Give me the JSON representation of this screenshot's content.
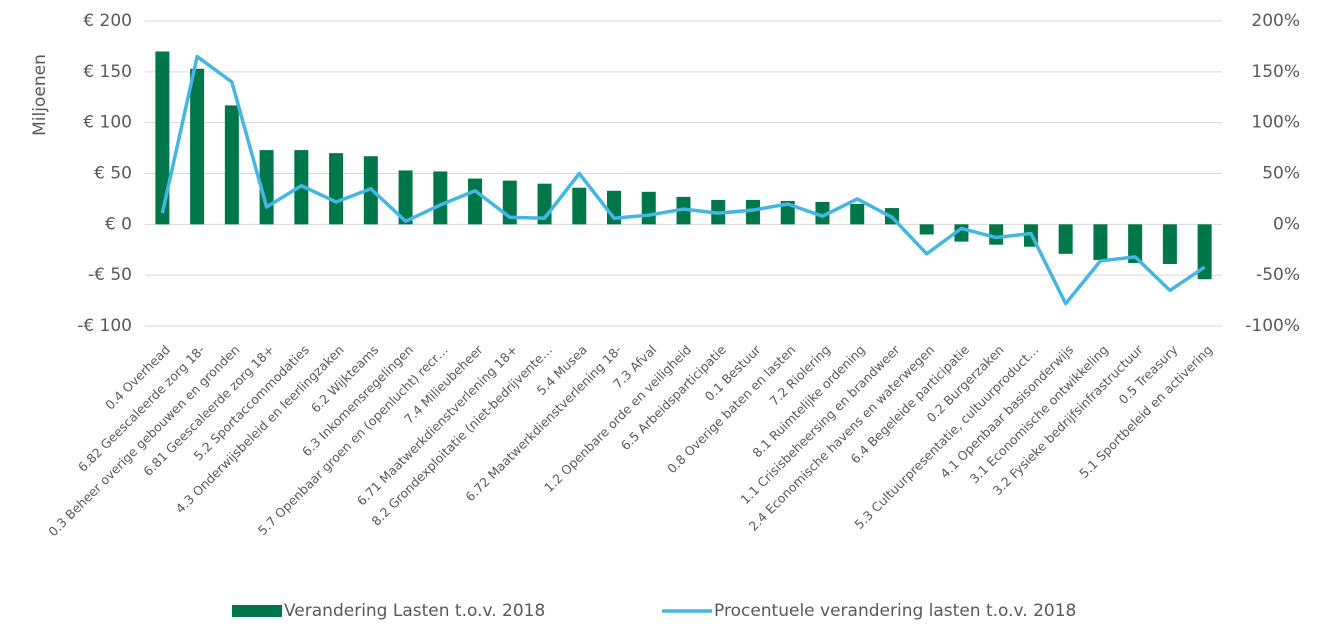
{
  "chart_data": {
    "type": "bar_line",
    "ylabel": "Miljoenen",
    "categories": [
      "0.4 Overhead",
      "6.82 Geescaleerde zorg 18-",
      "0.3 Beheer overige gebouwen en gronden",
      "6.81 Geescaleerde zorg 18+",
      "5.2 Sportaccommodaties",
      "4.3 Onderwijsbeleid en leerlingzaken",
      "6.2 Wijkteams",
      "6.3 Inkomensregelingen",
      "5.7 Openbaar groen en (openlucht) recr…",
      "7.4 Milieubeheer",
      "6.71 Maatwerkdienstverlening 18+",
      "8.2 Grondexploitatie (niet-bedrijvente…",
      "5.4 Musea",
      "6.72 Maatwerkdienstverlening 18-",
      "7.3 Afval",
      "1.2 Openbare orde en veiligheid",
      "6.5 Arbeidsparticipatie",
      "0.1 Bestuur",
      "0.8 Overige baten en lasten",
      "7.2 Riolering",
      "8.1 Ruimtelijke ordening",
      "1.1 Crisisbeheersing en brandweer",
      "2.4 Economische havens en waterwegen",
      "6.4 Begeleide participatie",
      "0.2 Burgerzaken",
      "5.3 Cultuurpresentatie, cultuurproduct…",
      "4.1 Openbaar basisonderwijs",
      "3.1 Economische ontwikkeling",
      "3.2 Fysieke bedrijfsinfrastructuur",
      "0.5 Treasury",
      "5.1 Sportbeleid en activering"
    ],
    "series": [
      {
        "name": "Verandering Lasten t.o.v. 2018",
        "type": "bar",
        "color": "#00774a",
        "values": [
          170,
          153,
          117,
          73,
          73,
          70,
          67,
          53,
          52,
          45,
          43,
          40,
          36,
          33,
          32,
          27,
          24,
          24,
          23,
          22,
          20,
          16,
          -10,
          -17,
          -20,
          -22,
          -29,
          -35,
          -38,
          -39,
          -54
        ]
      },
      {
        "name": "Procentuele verandering lasten t.o.v. 2018",
        "type": "line",
        "color": "#44b6e3",
        "axis": "y2",
        "values": [
          11,
          165,
          140,
          17,
          38,
          22,
          35,
          3,
          19,
          33,
          7,
          6,
          50,
          6,
          9,
          15,
          11,
          14,
          20,
          8,
          25,
          7,
          -29,
          -4,
          -13,
          -9,
          -78,
          -36,
          -32,
          -65,
          -42
        ]
      }
    ],
    "ylim": [
      -100,
      200
    ],
    "yticks": [
      {
        "value": -100,
        "label": "-€ 100"
      },
      {
        "value": -50,
        "label": "-€ 50"
      },
      {
        "value": 0,
        "label": "€ 0"
      },
      {
        "value": 50,
        "label": "€ 50"
      },
      {
        "value": 100,
        "label": "€ 100"
      },
      {
        "value": 150,
        "label": "€ 150"
      },
      {
        "value": 200,
        "label": "€ 200"
      }
    ],
    "y2lim": [
      -100,
      200
    ],
    "y2ticks": [
      {
        "value": -100,
        "label": "-100%"
      },
      {
        "value": -50,
        "label": "-50%"
      },
      {
        "value": 0,
        "label": "0%"
      },
      {
        "value": 50,
        "label": "50%"
      },
      {
        "value": 100,
        "label": "100%"
      },
      {
        "value": 150,
        "label": "150%"
      },
      {
        "value": 200,
        "label": "200%"
      }
    ],
    "grid": true,
    "legend": "bottom"
  }
}
